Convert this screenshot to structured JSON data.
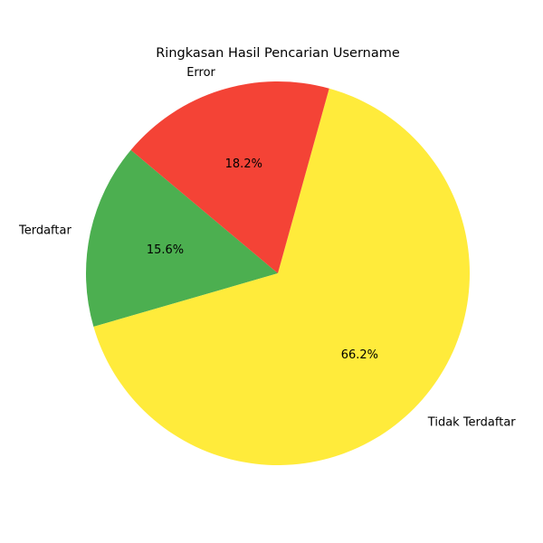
{
  "chart_data": {
    "type": "pie",
    "title": "Ringkasan Hasil Pencarian Username",
    "categories": [
      "Terdaftar",
      "Tidak Terdaftar",
      "Error"
    ],
    "values": [
      15.6,
      66.2,
      18.2
    ],
    "value_labels": [
      "15.6%",
      "66.2%",
      "18.2%"
    ],
    "colors": [
      "#4caf50",
      "#ffeb3b",
      "#f44336"
    ],
    "start_angle_deg": 140,
    "direction": "counterclockwise",
    "legend": "none"
  }
}
